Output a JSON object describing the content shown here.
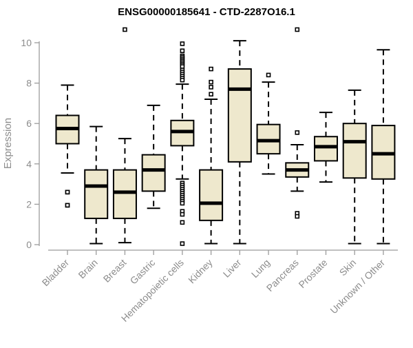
{
  "page": {
    "title": "ENSG00000185641 - CTD-2287O16.1"
  },
  "chart_data": {
    "type": "boxplot",
    "title": "ENSG00000185641 - CTD-2287O16.1",
    "xlabel": "",
    "ylabel": "Expression",
    "ylim": [
      0,
      10
    ],
    "yticks": [
      0,
      2,
      4,
      6,
      8,
      10
    ],
    "grid": false,
    "legend": "none",
    "outlier_marker": "open-square",
    "categories": [
      "Bladder",
      "Brain",
      "Breast",
      "Gastric",
      "Hematopoietic cells",
      "Kidney",
      "Liver",
      "Lung",
      "Pancreas",
      "Prostate",
      "Skin",
      "Unknown / Other"
    ],
    "series": [
      {
        "name": "Bladder",
        "whisker_low": 3.55,
        "q1": 5.0,
        "median": 5.75,
        "q3": 6.4,
        "whisker_high": 7.9,
        "outliers": [
          2.6,
          2.6,
          1.95,
          1.95
        ]
      },
      {
        "name": "Brain",
        "whisker_low": 0.05,
        "q1": 1.3,
        "median": 2.9,
        "q3": 3.7,
        "whisker_high": 5.85,
        "outliers": []
      },
      {
        "name": "Breast",
        "whisker_low": 0.1,
        "q1": 1.3,
        "median": 2.6,
        "q3": 3.7,
        "whisker_high": 5.25,
        "outliers": [
          10.65
        ]
      },
      {
        "name": "Gastric",
        "whisker_low": 1.8,
        "q1": 2.65,
        "median": 3.7,
        "q3": 4.45,
        "whisker_high": 6.9,
        "outliers": []
      },
      {
        "name": "Hematopoietic cells",
        "whisker_low": 3.25,
        "q1": 4.9,
        "median": 5.6,
        "q3": 6.15,
        "whisker_high": 7.95,
        "outliers": [
          9.95,
          9.6,
          9.35,
          9.28,
          9.2,
          9.12,
          9.05,
          8.97,
          8.9,
          8.82,
          8.65,
          8.55,
          8.45,
          8.35,
          8.25,
          8.15,
          3.05,
          2.95,
          2.85,
          2.75,
          2.65,
          2.55,
          2.45,
          2.35,
          2.25,
          2.15,
          2.05,
          1.65,
          1.5,
          1.1,
          0.05
        ]
      },
      {
        "name": "Kidney",
        "whisker_low": 0.05,
        "q1": 1.2,
        "median": 2.05,
        "q3": 3.7,
        "whisker_high": 7.2,
        "outliers": [
          8.7,
          8.05,
          7.8,
          7.45
        ]
      },
      {
        "name": "Liver",
        "whisker_low": 0.05,
        "q1": 4.1,
        "median": 7.7,
        "q3": 8.7,
        "whisker_high": 10.1,
        "outliers": []
      },
      {
        "name": "Lung",
        "whisker_low": 3.5,
        "q1": 4.5,
        "median": 5.15,
        "q3": 5.95,
        "whisker_high": 8.05,
        "outliers": [
          8.4
        ]
      },
      {
        "name": "Pancreas",
        "whisker_low": 2.65,
        "q1": 3.35,
        "median": 3.7,
        "q3": 4.05,
        "whisker_high": 4.95,
        "outliers": [
          10.65,
          5.55,
          1.55,
          1.4
        ]
      },
      {
        "name": "Prostate",
        "whisker_low": 3.1,
        "q1": 4.15,
        "median": 4.85,
        "q3": 5.35,
        "whisker_high": 6.55,
        "outliers": []
      },
      {
        "name": "Skin",
        "whisker_low": 0.05,
        "q1": 3.3,
        "median": 5.1,
        "q3": 6.0,
        "whisker_high": 7.65,
        "outliers": []
      },
      {
        "name": "Unknown / Other",
        "whisker_low": 0.05,
        "q1": 3.25,
        "median": 4.5,
        "q3": 5.9,
        "whisker_high": 9.65,
        "outliers": []
      }
    ],
    "colors": {
      "box_fill": "#EEE8CD",
      "box_border": "#000000",
      "median": "#000000",
      "whisker": "#000000",
      "outlier": "#000000",
      "axis": "#9b9b9b",
      "tick_label": "#8c8c8c",
      "title": "#000000",
      "background": "#ffffff"
    }
  }
}
